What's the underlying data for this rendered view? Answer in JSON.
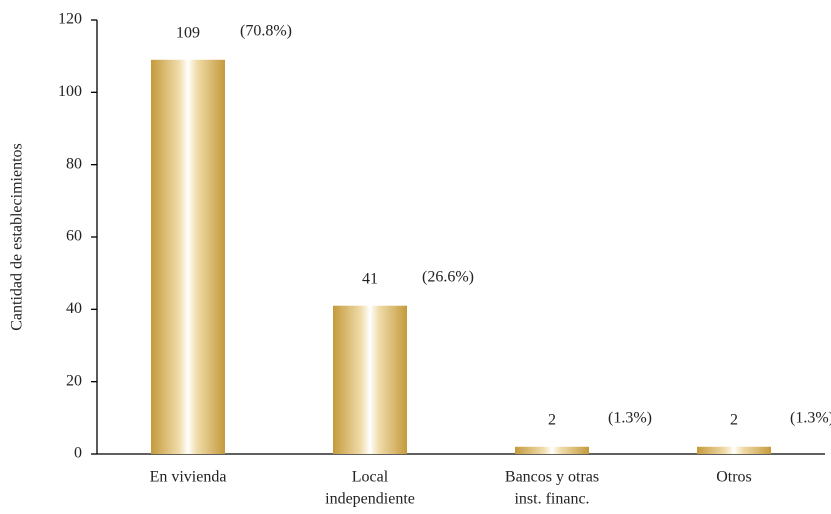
{
  "chart_data": {
    "type": "bar",
    "y_label": "Cantidad de establecimientos",
    "categories": [
      [
        "En vivienda"
      ],
      [
        "Local",
        "independiente"
      ],
      [
        "Bancos y otras",
        "inst. financ."
      ],
      [
        "Otros"
      ]
    ],
    "values": [
      109,
      41,
      2,
      2
    ],
    "percent_labels": [
      "(70.8%)",
      "(26.6%)",
      "(1.3%)",
      "(1.3%)"
    ],
    "color": "#c49a3c",
    "ylim": [
      0,
      120
    ],
    "yticks": [
      0,
      20,
      40,
      60,
      80,
      100,
      120
    ],
    "grid": false
  }
}
